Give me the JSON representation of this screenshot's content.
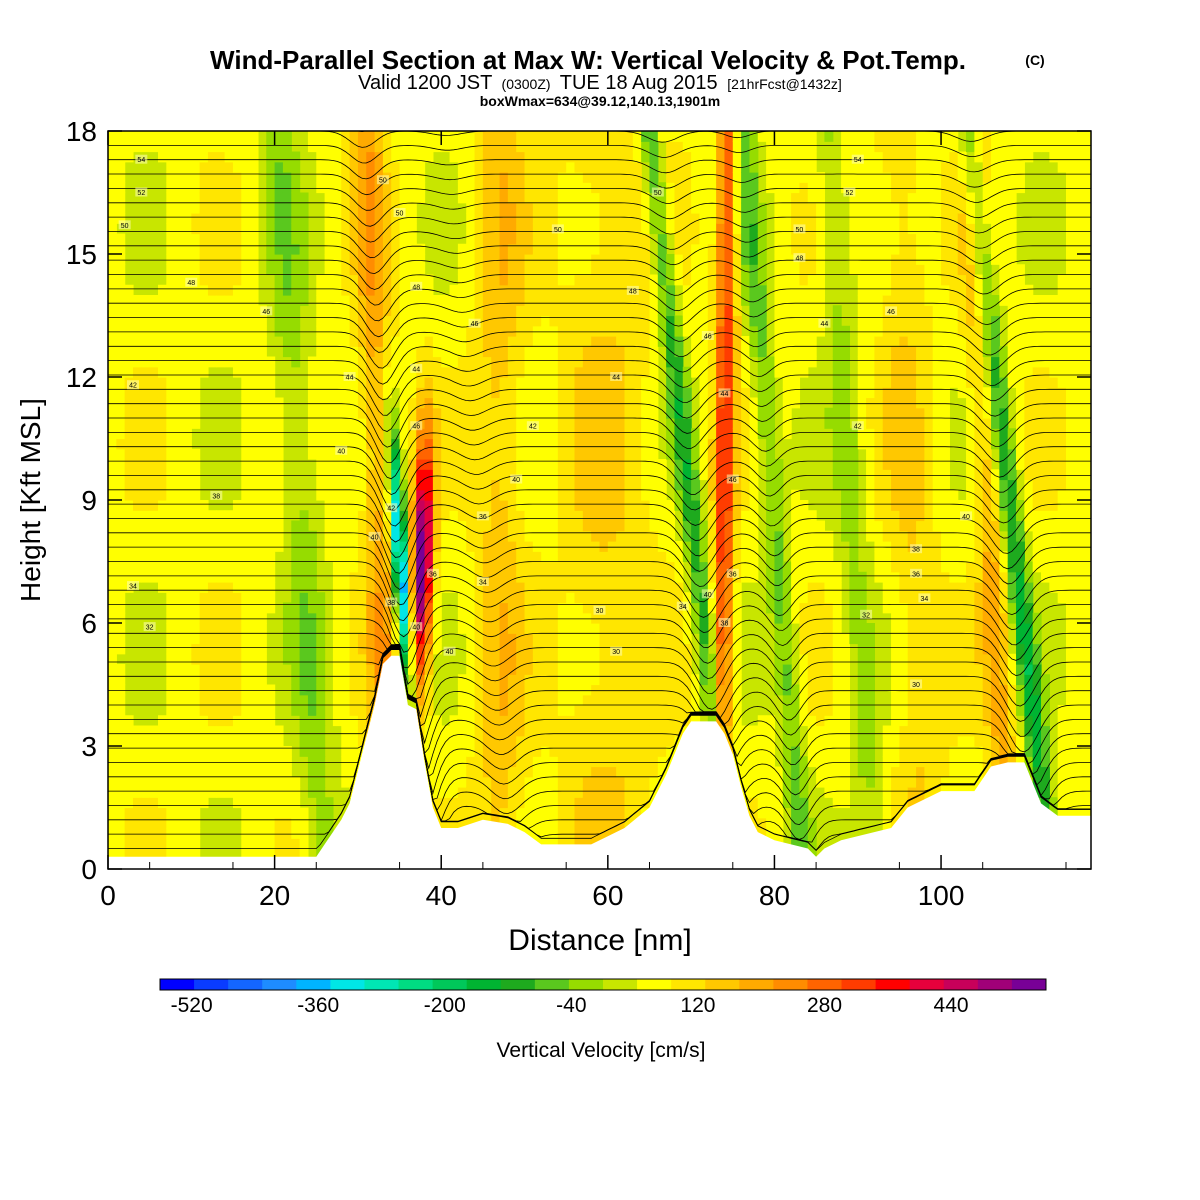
{
  "titles": {
    "main": "Wind-Parallel Section at Max W: Vertical Velocity & Pot.Temp.",
    "copyright": "(C)",
    "valid_prefix": "Valid 1200 JST",
    "valid_z": "(0300Z)",
    "valid_date": "TUE 18 Aug 2015",
    "forecast": "[21hrFcst@1432z]",
    "box": "boxWmax=634@39.12,140.13,1901m"
  },
  "chart_data": {
    "type": "heatmap",
    "title": "Wind-Parallel Section at Max W: Vertical Velocity & Pot.Temp.",
    "xlabel": "Distance [nm]",
    "ylabel": "Height [Kft MSL]",
    "xlim": [
      0,
      118
    ],
    "ylim": [
      0,
      18
    ],
    "x_ticks": [
      0,
      20,
      40,
      60,
      80,
      100
    ],
    "y_ticks": [
      0,
      3,
      6,
      9,
      12,
      15,
      18
    ],
    "colorbar": {
      "label": "Vertical Velocity [cm/s]",
      "min": -560,
      "max": 560,
      "step": 40,
      "tick_values": [
        -520,
        -360,
        -200,
        -40,
        120,
        280,
        440
      ],
      "colors": [
        "#0000ff",
        "#0a3cff",
        "#1466ff",
        "#1e8cff",
        "#00b4ff",
        "#00e6e6",
        "#00e6b4",
        "#00dc82",
        "#00c85a",
        "#00b432",
        "#1eaa1e",
        "#5ac81e",
        "#96dc00",
        "#c8e600",
        "#ffff00",
        "#ffe600",
        "#ffc800",
        "#ffaa00",
        "#ff8c00",
        "#ff6400",
        "#ff3c00",
        "#ff0000",
        "#e6003c",
        "#c8005a",
        "#a00078",
        "#780096"
      ]
    },
    "terrain_kft": [
      [
        0,
        0.3
      ],
      [
        10,
        0.3
      ],
      [
        20,
        0.3
      ],
      [
        25,
        0.3
      ],
      [
        26,
        0.6
      ],
      [
        27,
        0.9
      ],
      [
        28,
        1.2
      ],
      [
        29,
        1.6
      ],
      [
        30,
        2.4
      ],
      [
        31,
        3.2
      ],
      [
        32,
        4.0
      ],
      [
        33,
        5.0
      ],
      [
        34,
        5.2
      ],
      [
        35,
        5.2
      ],
      [
        36,
        4.0
      ],
      [
        37,
        3.9
      ],
      [
        38,
        2.6
      ],
      [
        39,
        1.5
      ],
      [
        40,
        1.0
      ],
      [
        42,
        1.0
      ],
      [
        45,
        1.2
      ],
      [
        48,
        1.1
      ],
      [
        50,
        0.9
      ],
      [
        52,
        0.6
      ],
      [
        58,
        0.6
      ],
      [
        60,
        0.8
      ],
      [
        62,
        1.0
      ],
      [
        65,
        1.5
      ],
      [
        67,
        2.3
      ],
      [
        69,
        3.3
      ],
      [
        70,
        3.6
      ],
      [
        73,
        3.6
      ],
      [
        74,
        3.3
      ],
      [
        75,
        2.8
      ],
      [
        76,
        2.0
      ],
      [
        77,
        1.3
      ],
      [
        78,
        0.9
      ],
      [
        80,
        0.7
      ],
      [
        84,
        0.5
      ],
      [
        85,
        0.3
      ],
      [
        86,
        0.5
      ],
      [
        88,
        0.7
      ],
      [
        94,
        1.0
      ],
      [
        96,
        1.5
      ],
      [
        100,
        1.9
      ],
      [
        104,
        1.9
      ],
      [
        106,
        2.5
      ],
      [
        108,
        2.6
      ],
      [
        110,
        2.6
      ],
      [
        112,
        1.6
      ],
      [
        114,
        1.3
      ],
      [
        118,
        1.3
      ]
    ],
    "theta_contour_labels": [
      {
        "x": 4,
        "y": 17.3,
        "label": "54"
      },
      {
        "x": 4,
        "y": 16.5,
        "label": "52"
      },
      {
        "x": 2,
        "y": 15.7,
        "label": "50"
      },
      {
        "x": 10,
        "y": 14.3,
        "label": "48"
      },
      {
        "x": 19,
        "y": 13.6,
        "label": "46"
      },
      {
        "x": 3,
        "y": 11.8,
        "label": "42"
      },
      {
        "x": 28,
        "y": 10.2,
        "label": "40"
      },
      {
        "x": 13,
        "y": 9.1,
        "label": "38"
      },
      {
        "x": 3,
        "y": 6.9,
        "label": "34"
      },
      {
        "x": 5,
        "y": 5.9,
        "label": "32"
      },
      {
        "x": 33,
        "y": 16.8,
        "label": "50"
      },
      {
        "x": 35,
        "y": 16.0,
        "label": "50"
      },
      {
        "x": 37,
        "y": 14.2,
        "label": "48"
      },
      {
        "x": 44,
        "y": 13.3,
        "label": "46"
      },
      {
        "x": 29,
        "y": 12.0,
        "label": "44"
      },
      {
        "x": 37,
        "y": 12.2,
        "label": "44"
      },
      {
        "x": 37,
        "y": 10.8,
        "label": "46"
      },
      {
        "x": 34,
        "y": 8.8,
        "label": "42"
      },
      {
        "x": 32,
        "y": 8.1,
        "label": "40"
      },
      {
        "x": 39,
        "y": 7.2,
        "label": "36"
      },
      {
        "x": 34,
        "y": 6.5,
        "label": "38"
      },
      {
        "x": 37,
        "y": 5.9,
        "label": "40"
      },
      {
        "x": 41,
        "y": 5.3,
        "label": "40"
      },
      {
        "x": 66,
        "y": 16.5,
        "label": "50"
      },
      {
        "x": 54,
        "y": 15.6,
        "label": "50"
      },
      {
        "x": 63,
        "y": 14.1,
        "label": "48"
      },
      {
        "x": 51,
        "y": 10.8,
        "label": "42"
      },
      {
        "x": 49,
        "y": 9.5,
        "label": "40"
      },
      {
        "x": 45,
        "y": 8.6,
        "label": "36"
      },
      {
        "x": 45,
        "y": 7.0,
        "label": "34"
      },
      {
        "x": 61,
        "y": 12.0,
        "label": "44"
      },
      {
        "x": 59,
        "y": 6.3,
        "label": "30"
      },
      {
        "x": 61,
        "y": 5.3,
        "label": "30"
      },
      {
        "x": 72,
        "y": 13.0,
        "label": "46"
      },
      {
        "x": 74,
        "y": 11.6,
        "label": "44"
      },
      {
        "x": 75,
        "y": 9.5,
        "label": "46"
      },
      {
        "x": 69,
        "y": 6.4,
        "label": "34"
      },
      {
        "x": 72,
        "y": 6.7,
        "label": "40"
      },
      {
        "x": 75,
        "y": 7.2,
        "label": "36"
      },
      {
        "x": 74,
        "y": 6.0,
        "label": "38"
      },
      {
        "x": 90,
        "y": 17.3,
        "label": "54"
      },
      {
        "x": 89,
        "y": 16.5,
        "label": "52"
      },
      {
        "x": 83,
        "y": 15.6,
        "label": "50"
      },
      {
        "x": 83,
        "y": 14.9,
        "label": "48"
      },
      {
        "x": 86,
        "y": 13.3,
        "label": "44"
      },
      {
        "x": 94,
        "y": 13.6,
        "label": "46"
      },
      {
        "x": 90,
        "y": 10.8,
        "label": "42"
      },
      {
        "x": 103,
        "y": 8.6,
        "label": "40"
      },
      {
        "x": 97,
        "y": 7.8,
        "label": "38"
      },
      {
        "x": 97,
        "y": 7.2,
        "label": "36"
      },
      {
        "x": 98,
        "y": 6.6,
        "label": "34"
      },
      {
        "x": 91,
        "y": 6.2,
        "label": "32"
      },
      {
        "x": 97,
        "y": 4.5,
        "label": "30"
      }
    ]
  }
}
